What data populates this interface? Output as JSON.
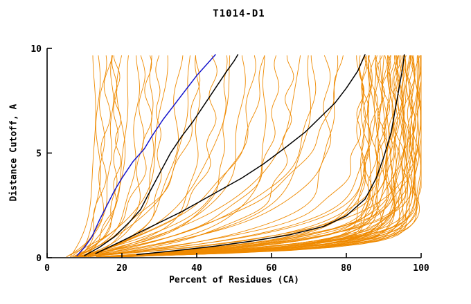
{
  "chart_data": {
    "type": "line",
    "title": "T1014-D1",
    "xlabel": "Percent of Residues (CA)",
    "ylabel": "Distance Cutoff, A",
    "xlim": [
      0,
      100
    ],
    "ylim": [
      0,
      10
    ],
    "x_ticks": [
      0,
      20,
      40,
      60,
      80,
      100
    ],
    "y_ticks": [
      0,
      5,
      10
    ],
    "grid": false,
    "legend": "none",
    "colors": {
      "predictions": "#EF8A00",
      "reference": "#000000",
      "highlight": "#1414CC",
      "axis": "#000000"
    },
    "orange_curves": [
      [
        6,
        13,
        0.5
      ],
      [
        7,
        14,
        0.8
      ],
      [
        5,
        15,
        1.2
      ],
      [
        8,
        16,
        0.6
      ],
      [
        6,
        17,
        0.9
      ],
      [
        7,
        18,
        1.4
      ],
      [
        9,
        19,
        0.7
      ],
      [
        6,
        20,
        1.0
      ],
      [
        8,
        22,
        0.5
      ],
      [
        7,
        24,
        0.8
      ],
      [
        9,
        25,
        1.2
      ],
      [
        6,
        27,
        0.6
      ],
      [
        8,
        28,
        0.9
      ],
      [
        7,
        30,
        1.1
      ],
      [
        7,
        32,
        0.45
      ],
      [
        8,
        35,
        0.7
      ],
      [
        6,
        38,
        0.5
      ],
      [
        9,
        40,
        0.9
      ],
      [
        7,
        42,
        0.35
      ],
      [
        8,
        45,
        0.6
      ],
      [
        6,
        48,
        0.8
      ],
      [
        9,
        50,
        0.4
      ],
      [
        7,
        52,
        0.7
      ],
      [
        8,
        55,
        0.5
      ],
      [
        6,
        58,
        0.9
      ],
      [
        9,
        60,
        0.35
      ],
      [
        7,
        62,
        0.6
      ],
      [
        8,
        65,
        0.8
      ],
      [
        6,
        68,
        0.45
      ],
      [
        9,
        70,
        0.7
      ],
      [
        7,
        72,
        0.5
      ],
      [
        8,
        75,
        0.9
      ],
      [
        6,
        78,
        0.6
      ],
      [
        9,
        80,
        0.4
      ],
      [
        5,
        84,
        0.8
      ],
      [
        12,
        98,
        2.1
      ],
      [
        11,
        95,
        1.1
      ],
      [
        10,
        92,
        2.4
      ],
      [
        9,
        89,
        1.4
      ],
      [
        8,
        86,
        2.7
      ],
      [
        7,
        100,
        1.7
      ],
      [
        6,
        97,
        3.0
      ],
      [
        5,
        94,
        2.0
      ],
      [
        12,
        91,
        1.0
      ],
      [
        11,
        88,
        2.3
      ],
      [
        10,
        85,
        1.3
      ],
      [
        9,
        99,
        2.6
      ],
      [
        8,
        96,
        1.6
      ],
      [
        7,
        93,
        2.9
      ],
      [
        6,
        90,
        1.9
      ],
      [
        5,
        87,
        0.9
      ],
      [
        12,
        84,
        2.2
      ],
      [
        11,
        98,
        1.2
      ],
      [
        10,
        95,
        2.5
      ],
      [
        9,
        92,
        1.5
      ],
      [
        8,
        89,
        2.8
      ],
      [
        7,
        86,
        1.8
      ],
      [
        6,
        100,
        0.8
      ],
      [
        5,
        97,
        2.1
      ],
      [
        12,
        94,
        1.1
      ],
      [
        11,
        91,
        2.4
      ],
      [
        10,
        88,
        1.4
      ],
      [
        9,
        85,
        2.7
      ],
      [
        8,
        99,
        1.7
      ],
      [
        7,
        96,
        3.0
      ],
      [
        6,
        93,
        2.0
      ],
      [
        5,
        90,
        1.0
      ],
      [
        12,
        87,
        2.3
      ],
      [
        11,
        84,
        1.3
      ],
      [
        10,
        98,
        2.6
      ],
      [
        9,
        95,
        1.6
      ],
      [
        8,
        92,
        2.9
      ],
      [
        7,
        89,
        1.9
      ],
      [
        6,
        86,
        0.9
      ],
      [
        5,
        100,
        2.2
      ],
      [
        10,
        94,
        1.8
      ],
      [
        6,
        97,
        2.3
      ],
      [
        8,
        99,
        1.2
      ],
      [
        11,
        96,
        2.6
      ],
      [
        7,
        93,
        1.5
      ],
      [
        9,
        100,
        2.0
      ],
      [
        5,
        95,
        2.8
      ],
      [
        10,
        98,
        1.0
      ],
      [
        8,
        91,
        2.4
      ],
      [
        6,
        99,
        1.6
      ]
    ],
    "blue_curve": [
      [
        8,
        0.1
      ],
      [
        10,
        0.5
      ],
      [
        12,
        1.0
      ],
      [
        14,
        1.8
      ],
      [
        16,
        2.5
      ],
      [
        18,
        3.2
      ],
      [
        20,
        3.8
      ],
      [
        23,
        4.6
      ],
      [
        26,
        5.2
      ],
      [
        28,
        5.8
      ],
      [
        31,
        6.6
      ],
      [
        34,
        7.3
      ],
      [
        37,
        8.0
      ],
      [
        40,
        8.7
      ],
      [
        43,
        9.3
      ],
      [
        45,
        9.7
      ]
    ],
    "black_curves": [
      [
        [
          10,
          0.1
        ],
        [
          14,
          0.5
        ],
        [
          18,
          1.0
        ],
        [
          22,
          1.7
        ],
        [
          25,
          2.3
        ],
        [
          27,
          3.0
        ],
        [
          30,
          4.0
        ],
        [
          33,
          5.0
        ],
        [
          36,
          5.8
        ],
        [
          39,
          6.5
        ],
        [
          42,
          7.3
        ],
        [
          45,
          8.1
        ],
        [
          48,
          8.9
        ],
        [
          50,
          9.4
        ],
        [
          51,
          9.7
        ]
      ],
      [
        [
          13,
          0.2
        ],
        [
          20,
          0.8
        ],
        [
          28,
          1.5
        ],
        [
          36,
          2.2
        ],
        [
          44,
          3.0
        ],
        [
          52,
          3.8
        ],
        [
          58,
          4.5
        ],
        [
          64,
          5.3
        ],
        [
          69,
          6.0
        ],
        [
          73,
          6.7
        ],
        [
          77,
          7.4
        ],
        [
          80,
          8.1
        ],
        [
          83,
          8.9
        ],
        [
          85,
          9.7
        ]
      ],
      [
        [
          24,
          0.15
        ],
        [
          35,
          0.35
        ],
        [
          45,
          0.55
        ],
        [
          55,
          0.8
        ],
        [
          65,
          1.1
        ],
        [
          74,
          1.5
        ],
        [
          80,
          2.0
        ],
        [
          85,
          2.8
        ],
        [
          88,
          3.8
        ],
        [
          90,
          4.8
        ],
        [
          92,
          6.0
        ],
        [
          93,
          7.0
        ],
        [
          94,
          8.0
        ],
        [
          95,
          9.0
        ],
        [
          95.5,
          9.7
        ]
      ]
    ]
  }
}
